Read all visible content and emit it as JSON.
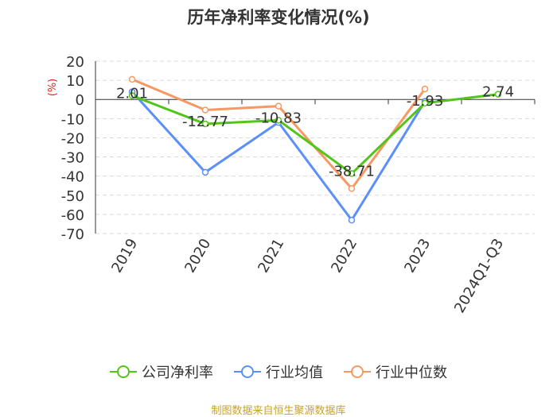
{
  "chart_data": {
    "type": "line",
    "title": "历年净利率变化情况(%)",
    "ylabel": "(%)",
    "categories": [
      "2019",
      "2020",
      "2021",
      "2022",
      "2023",
      "2024Q1-Q3"
    ],
    "ylim": [
      -70,
      20
    ],
    "yticks": [
      20,
      10,
      0,
      -10,
      -20,
      -30,
      -40,
      -50,
      -60,
      -70
    ],
    "grid": true,
    "legend_position": "bottom",
    "series": [
      {
        "name": "公司净利率",
        "color": "#52c41a",
        "values": [
          2.01,
          -12.77,
          -10.83,
          -38.71,
          -1.93,
          2.74
        ],
        "labels": [
          "2.01",
          "-12.77",
          "-10.83",
          "-38.71",
          "-1.93",
          "2.74"
        ]
      },
      {
        "name": "行业均值",
        "color": "#5b8ff9",
        "values": [
          4.0,
          -38.0,
          -12.0,
          -63.0,
          -1.0,
          null
        ]
      },
      {
        "name": "行业中位数",
        "color": "#f79862",
        "values": [
          10.5,
          -5.5,
          -3.5,
          -46.5,
          5.5,
          null
        ]
      }
    ]
  },
  "source": "制图数据来自恒生聚源数据库"
}
